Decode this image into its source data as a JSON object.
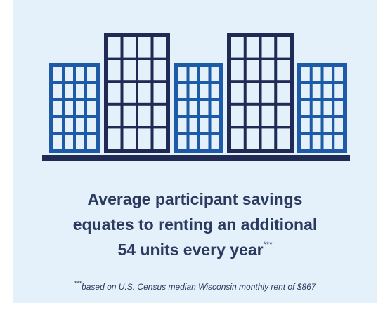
{
  "headline": {
    "lines": [
      "Average participant savings",
      "equates to renting an additional",
      "54 units every year"
    ],
    "marker": "***"
  },
  "footnote": {
    "marker": "***",
    "text": "based on U.S. Census median Wisconsin monthly rent of $867"
  }
}
